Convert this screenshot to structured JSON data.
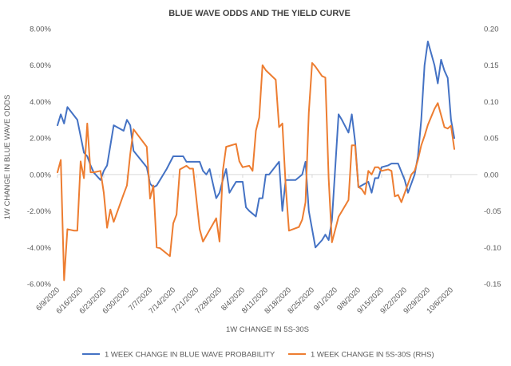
{
  "chart_data": {
    "type": "line",
    "title": "BLUE WAVE ODDS AND THE YIELD CURVE",
    "xlabel": "1W CHANGE IN 5S-30S",
    "ylabel": "1W CHANGE IN BLUE WAVE ODDS",
    "y_left": {
      "range": [
        -0.06,
        0.08
      ],
      "ticks": [
        -0.06,
        -0.04,
        -0.02,
        0.0,
        0.02,
        0.04,
        0.06,
        0.08
      ],
      "tick_labels": [
        "-6.00%",
        "-4.00%",
        "-2.00%",
        "0.00%",
        "2.00%",
        "4.00%",
        "6.00%",
        "8.00%"
      ]
    },
    "y_right": {
      "range": [
        -0.15,
        0.2
      ],
      "ticks": [
        -0.15,
        -0.1,
        -0.05,
        0.0,
        0.05,
        0.1,
        0.15,
        0.2
      ],
      "tick_labels": [
        "-0.15",
        "-0.10",
        "-0.05",
        "0.00",
        "0.05",
        "0.10",
        "0.15",
        "0.20"
      ]
    },
    "x_range": [
      0,
      127
    ],
    "x_ticks": [
      0,
      7,
      14,
      21,
      28,
      35,
      42,
      49,
      56,
      63,
      70,
      77,
      84,
      91,
      98,
      105,
      112,
      119
    ],
    "x_tick_labels": [
      "6/9/2020",
      "6/16/2020",
      "6/23/2020",
      "6/30/2020",
      "7/7/2020",
      "7/14/2020",
      "7/21/2020",
      "7/28/2020",
      "8/4/2020",
      "8/11/2020",
      "8/18/2020",
      "8/25/2020",
      "9/1/2020",
      "9/8/2020",
      "9/15/2020",
      "9/22/2020",
      "9/29/2020",
      "10/6/2020"
    ],
    "legend_position": "bottom",
    "series": [
      {
        "name": "1 WEEK CHANGE IN BLUE WAVE PROBABILITY",
        "axis": "left",
        "color": "#4472C4",
        "points": [
          [
            0,
            0.027
          ],
          [
            1,
            0.033
          ],
          [
            2,
            0.028
          ],
          [
            3,
            0.037
          ],
          [
            6,
            0.03
          ],
          [
            8,
            0.012
          ],
          [
            9,
            0.01
          ],
          [
            10,
            0.005
          ],
          [
            11,
            0.001
          ],
          [
            13,
            -0.003
          ],
          [
            14,
            0.002
          ],
          [
            15,
            0.005
          ],
          [
            17,
            0.027
          ],
          [
            20,
            0.024
          ],
          [
            21,
            0.03
          ],
          [
            22,
            0.027
          ],
          [
            23,
            0.013
          ],
          [
            27,
            0.004
          ],
          [
            28,
            -0.005
          ],
          [
            29,
            -0.007
          ],
          [
            30,
            -0.006
          ],
          [
            33,
            0.003
          ],
          [
            35,
            0.01
          ],
          [
            38,
            0.01
          ],
          [
            39,
            0.007
          ],
          [
            43,
            0.007
          ],
          [
            44,
            0.002
          ],
          [
            45,
            0.0
          ],
          [
            46,
            0.003
          ],
          [
            47,
            -0.005
          ],
          [
            48,
            -0.013
          ],
          [
            49,
            -0.01
          ],
          [
            50,
            -0.003
          ],
          [
            51,
            0.003
          ],
          [
            52,
            -0.01
          ],
          [
            53,
            -0.007
          ],
          [
            54,
            -0.004
          ],
          [
            56,
            -0.004
          ],
          [
            57,
            -0.018
          ],
          [
            58,
            -0.02
          ],
          [
            60,
            -0.023
          ],
          [
            61,
            -0.013
          ],
          [
            62,
            -0.013
          ],
          [
            63,
            0.0
          ],
          [
            64,
            0.0
          ],
          [
            67,
            0.007
          ],
          [
            68,
            -0.02
          ],
          [
            69,
            -0.003
          ],
          [
            72,
            -0.003
          ],
          [
            74,
            0.0
          ],
          [
            75,
            0.007
          ],
          [
            76,
            -0.02
          ],
          [
            78,
            -0.04
          ],
          [
            80,
            -0.036
          ],
          [
            81,
            -0.033
          ],
          [
            82,
            -0.036
          ],
          [
            83,
            -0.025
          ],
          [
            85,
            0.033
          ],
          [
            86,
            0.03
          ],
          [
            88,
            0.023
          ],
          [
            89,
            0.033
          ],
          [
            90,
            0.018
          ],
          [
            91,
            -0.007
          ],
          [
            93,
            -0.005
          ],
          [
            94,
            -0.004
          ],
          [
            95,
            -0.01
          ],
          [
            96,
            -0.002
          ],
          [
            97,
            -0.002
          ],
          [
            98,
            0.004
          ],
          [
            100,
            0.005
          ],
          [
            101,
            0.006
          ],
          [
            103,
            0.006
          ],
          [
            105,
            -0.003
          ],
          [
            106,
            -0.01
          ],
          [
            107,
            -0.005
          ],
          [
            108,
            0.0
          ],
          [
            109,
            0.01
          ],
          [
            110,
            0.03
          ],
          [
            111,
            0.06
          ],
          [
            112,
            0.073
          ],
          [
            114,
            0.06
          ],
          [
            115,
            0.05
          ],
          [
            116,
            0.063
          ],
          [
            117,
            0.057
          ],
          [
            118,
            0.053
          ],
          [
            119,
            0.03
          ],
          [
            120,
            0.02
          ]
        ]
      },
      {
        "name": "1 WEEK CHANGE IN 5S-30S (RHS)",
        "axis": "right",
        "color": "#ED7D31",
        "points": [
          [
            0,
            0.003
          ],
          [
            1,
            0.02
          ],
          [
            2,
            -0.145
          ],
          [
            3,
            -0.075
          ],
          [
            5,
            -0.077
          ],
          [
            6,
            -0.077
          ],
          [
            7,
            0.018
          ],
          [
            8,
            -0.005
          ],
          [
            9,
            0.07
          ],
          [
            10,
            0.003
          ],
          [
            11,
            0.003
          ],
          [
            13,
            0.005
          ],
          [
            14,
            -0.025
          ],
          [
            15,
            -0.073
          ],
          [
            16,
            -0.048
          ],
          [
            17,
            -0.065
          ],
          [
            20,
            -0.027
          ],
          [
            21,
            -0.015
          ],
          [
            22,
            0.028
          ],
          [
            23,
            0.062
          ],
          [
            27,
            0.038
          ],
          [
            28,
            -0.033
          ],
          [
            29,
            -0.015
          ],
          [
            30,
            -0.1
          ],
          [
            31,
            -0.101
          ],
          [
            34,
            -0.112
          ],
          [
            35,
            -0.067
          ],
          [
            36,
            -0.055
          ],
          [
            37,
            0.007
          ],
          [
            39,
            0.012
          ],
          [
            40,
            0.008
          ],
          [
            41,
            0.008
          ],
          [
            43,
            -0.075
          ],
          [
            44,
            -0.092
          ],
          [
            48,
            -0.06
          ],
          [
            49,
            -0.092
          ],
          [
            50,
            0.005
          ],
          [
            51,
            0.038
          ],
          [
            54,
            0.042
          ],
          [
            55,
            0.018
          ],
          [
            56,
            0.01
          ],
          [
            58,
            0.012
          ],
          [
            59,
            0.005
          ],
          [
            60,
            0.06
          ],
          [
            61,
            0.078
          ],
          [
            62,
            0.15
          ],
          [
            63,
            0.143
          ],
          [
            66,
            0.13
          ],
          [
            67,
            0.065
          ],
          [
            68,
            0.07
          ],
          [
            69,
            -0.015
          ],
          [
            70,
            -0.077
          ],
          [
            73,
            -0.072
          ],
          [
            74,
            -0.062
          ],
          [
            75,
            -0.038
          ],
          [
            76,
            0.085
          ],
          [
            77,
            0.153
          ],
          [
            78,
            0.148
          ],
          [
            80,
            0.135
          ],
          [
            81,
            0.133
          ],
          [
            82,
            -0.005
          ],
          [
            83,
            -0.093
          ],
          [
            85,
            -0.058
          ],
          [
            88,
            -0.035
          ],
          [
            89,
            0.04
          ],
          [
            90,
            0.04
          ],
          [
            91,
            -0.017
          ],
          [
            92,
            -0.02
          ],
          [
            93,
            -0.027
          ],
          [
            94,
            0.005
          ],
          [
            95,
            0.0
          ],
          [
            96,
            0.01
          ],
          [
            97,
            0.01
          ],
          [
            98,
            0.005
          ],
          [
            100,
            0.007
          ],
          [
            101,
            0.005
          ],
          [
            102,
            -0.03
          ],
          [
            103,
            -0.028
          ],
          [
            104,
            -0.038
          ],
          [
            107,
            0.0
          ],
          [
            108,
            0.005
          ],
          [
            109,
            0.02
          ],
          [
            110,
            0.04
          ],
          [
            111,
            0.053
          ],
          [
            112,
            0.068
          ],
          [
            114,
            0.09
          ],
          [
            115,
            0.098
          ],
          [
            117,
            0.065
          ],
          [
            118,
            0.063
          ],
          [
            119,
            0.067
          ],
          [
            120,
            0.035
          ]
        ]
      }
    ]
  }
}
